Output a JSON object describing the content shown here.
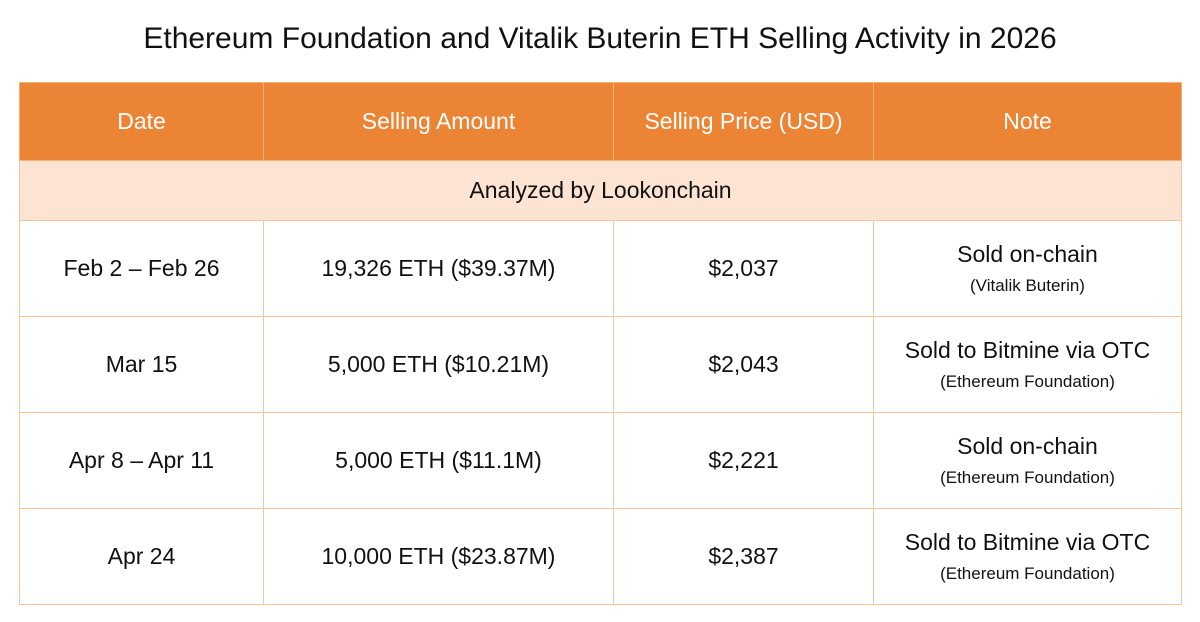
{
  "header": {
    "title": "Ethereum Foundation and Vitalik Buterin ETH Selling Activity in 2026"
  },
  "table": {
    "columns": [
      "Date",
      "Selling Amount",
      "Selling Price (USD)",
      "Note"
    ],
    "subheader": "Analyzed by Lookonchain",
    "rows": [
      {
        "date": "Feb 2 – Feb 26",
        "amount": "19,326 ETH ($39.37M)",
        "price": "$2,037",
        "note": "Sold on-chain",
        "note_detail": "(Vitalik Buterin)"
      },
      {
        "date": "Mar 15",
        "amount": "5,000 ETH ($10.21M)",
        "price": "$2,043",
        "note": "Sold to Bitmine via OTC",
        "note_detail": "(Ethereum Foundation)"
      },
      {
        "date": "Apr 8 – Apr 11",
        "amount": "5,000 ETH ($11.1M)",
        "price": "$2,221",
        "note": "Sold on-chain",
        "note_detail": "(Ethereum Foundation)"
      },
      {
        "date": "Apr 24",
        "amount": "10,000 ETH ($23.87M)",
        "price": "$2,387",
        "note": "Sold to Bitmine via OTC",
        "note_detail": "(Ethereum Foundation)"
      }
    ]
  }
}
